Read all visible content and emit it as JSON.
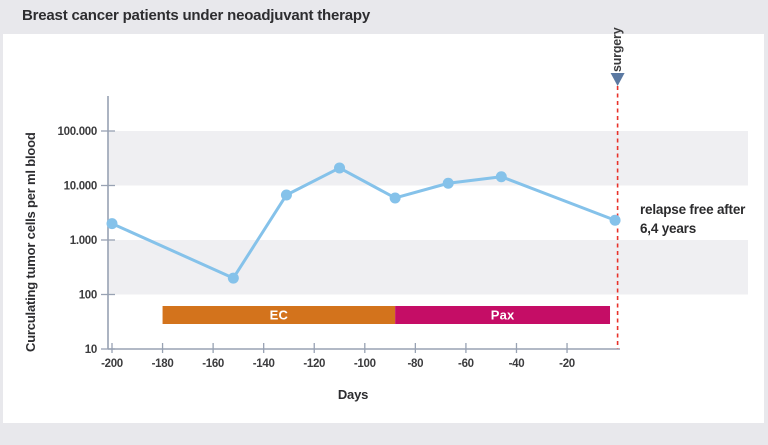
{
  "title": "Breast cancer patients under neoadjuvant therapy",
  "chart_data": {
    "type": "line",
    "title": "Breast cancer patients under neoadjuvant therapy",
    "xlabel": "Days",
    "ylabel": "Curculating tumor cells per ml blood",
    "x_scale": "linear",
    "y_scale": "log",
    "xlim": [
      -202,
      0
    ],
    "ylim": [
      10,
      400000
    ],
    "grid": false,
    "background_bands_decades": [
      [
        100,
        1000
      ],
      [
        10000,
        100000
      ]
    ],
    "yticks": [
      {
        "value": 100000,
        "label": "100.000"
      },
      {
        "value": 10000,
        "label": "10.000"
      },
      {
        "value": 1000,
        "label": "1.000"
      },
      {
        "value": 100,
        "label": "100"
      },
      {
        "value": 10,
        "label": "10"
      }
    ],
    "xticks": [
      {
        "value": -200,
        "label": "-200"
      },
      {
        "value": -180,
        "label": "-180"
      },
      {
        "value": -160,
        "label": "-160"
      },
      {
        "value": -140,
        "label": "-140"
      },
      {
        "value": -120,
        "label": "-120"
      },
      {
        "value": -100,
        "label": "-100"
      },
      {
        "value": -80,
        "label": "-80"
      },
      {
        "value": -60,
        "label": "-60"
      },
      {
        "value": -40,
        "label": "-40"
      },
      {
        "value": -20,
        "label": "-20"
      }
    ],
    "series": [
      {
        "name": "circulating tumor cells",
        "color": "#85c2ea",
        "points": [
          {
            "day": -200,
            "value": 2000
          },
          {
            "day": -152,
            "value": 200
          },
          {
            "day": -131,
            "value": 6700
          },
          {
            "day": -110,
            "value": 21000
          },
          {
            "day": -88,
            "value": 5900
          },
          {
            "day": -67,
            "value": 11000
          },
          {
            "day": -46,
            "value": 14500
          },
          {
            "day": -1,
            "value": 2300
          }
        ]
      }
    ],
    "therapy_bars": [
      {
        "label": "EC",
        "start_day": -180,
        "end_day": -88,
        "color": "#d3731c"
      },
      {
        "label": "Pax",
        "start_day": -88,
        "end_day": -3,
        "color": "#c50d66"
      }
    ],
    "annotations": {
      "surgery": {
        "label": "surgery",
        "day": 0,
        "line_color": "#e8322a",
        "marker_color": "#5b79a2"
      },
      "relapse": {
        "lines": [
          "relapse free after",
          "6,4 years"
        ]
      }
    },
    "colors": {
      "band": "#efeff2",
      "axis": "#98a2b3",
      "tick_text": "#3c3c3e",
      "title_text": "#2d2d30",
      "panel_bg": "#ffffff",
      "page_bg": "#e8e8ec"
    }
  }
}
